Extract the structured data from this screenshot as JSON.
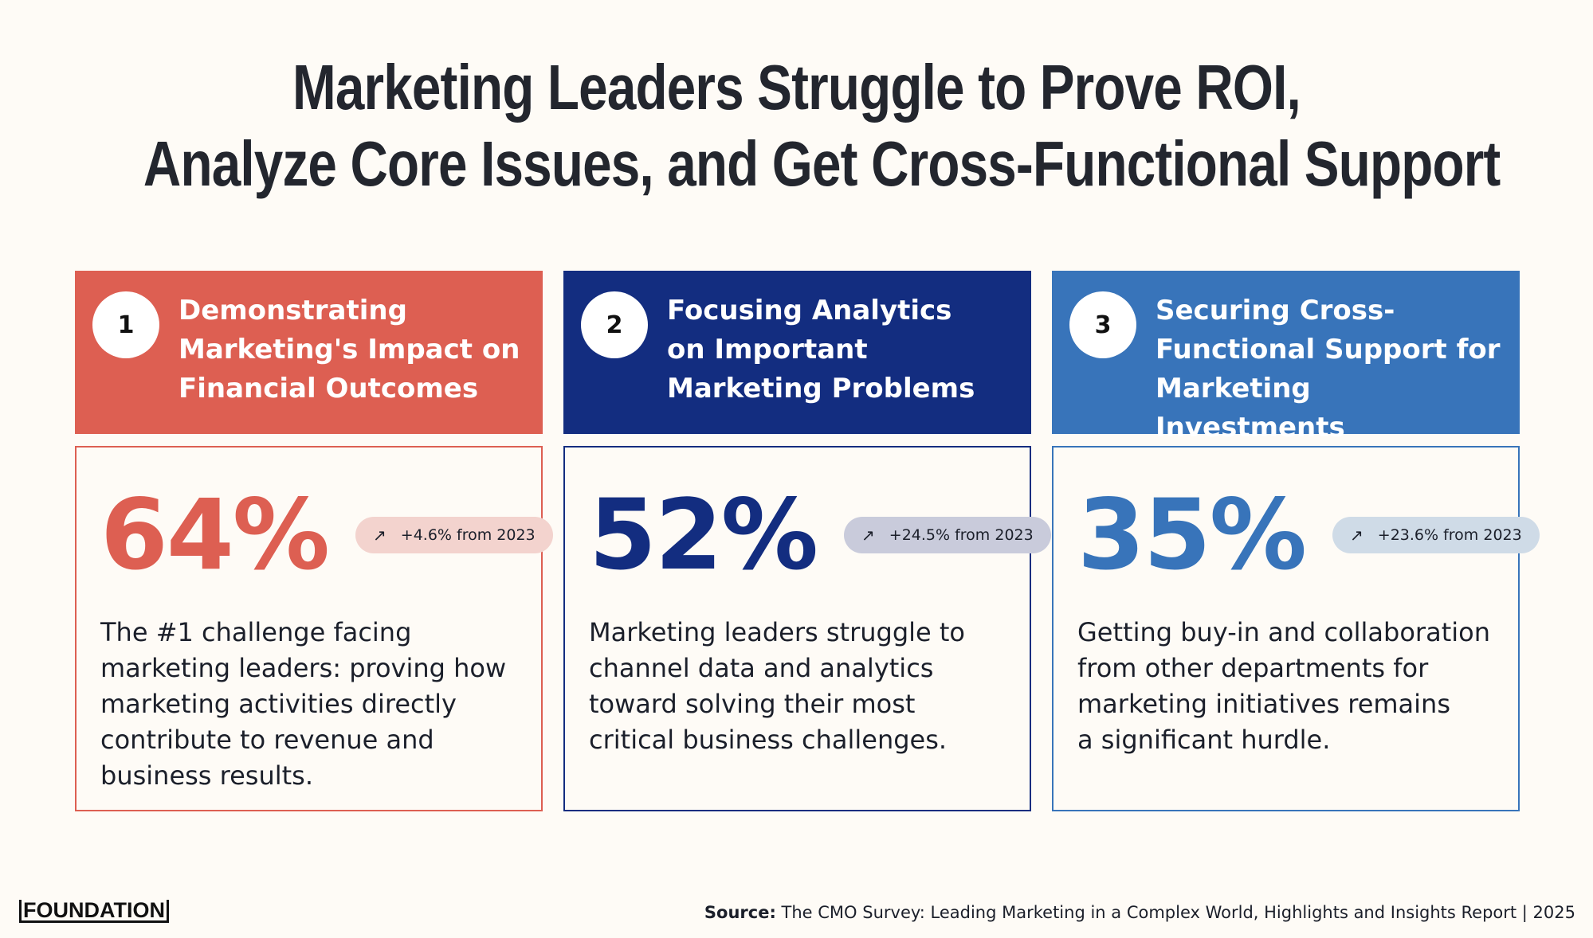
{
  "title": {
    "line1": "Marketing Leaders Struggle to Prove ROI,",
    "line2": "Analyze Core Issues, and Get Cross-Functional Support"
  },
  "cards": [
    {
      "number": "1",
      "heading": "Demonstrating\nMarketing's Impact on\nFinancial Outcomes",
      "stat": "64%",
      "change_icon": "arrow-up-right-icon",
      "change": "+4.6% from 2023",
      "description": "The #1 challenge facing\nmarketing leaders: proving how\nmarketing activities directly\ncontribute to revenue and\nbusiness results.",
      "color": "#dd5f52",
      "pill_color": "#f3d3ce"
    },
    {
      "number": "2",
      "heading": "Focusing Analytics\non Important\nMarketing Problems",
      "stat": "52%",
      "change_icon": "arrow-up-right-icon",
      "change": "+24.5% from 2023",
      "description": "Marketing leaders struggle to\nchannel data and analytics\ntoward solving their most\ncritical business challenges.",
      "color": "#132d80",
      "pill_color": "#c9cbdb"
    },
    {
      "number": "3",
      "heading": "Securing Cross-\nFunctional Support for\nMarketing Investments",
      "stat": "35%",
      "change_icon": "arrow-up-right-icon",
      "change": "+23.6% from 2023",
      "description": "Getting buy-in and collaboration\nfrom other departments for\nmarketing initiatives remains\na significant hurdle.",
      "color": "#3874ba",
      "pill_color": "#cfdbe7"
    }
  ],
  "footer": {
    "logo": "FOUNDATION",
    "source_label": "Source:",
    "source_text": " The CMO Survey: Leading Marketing in a Complex World, Highlights and Insights Report | 2025"
  }
}
